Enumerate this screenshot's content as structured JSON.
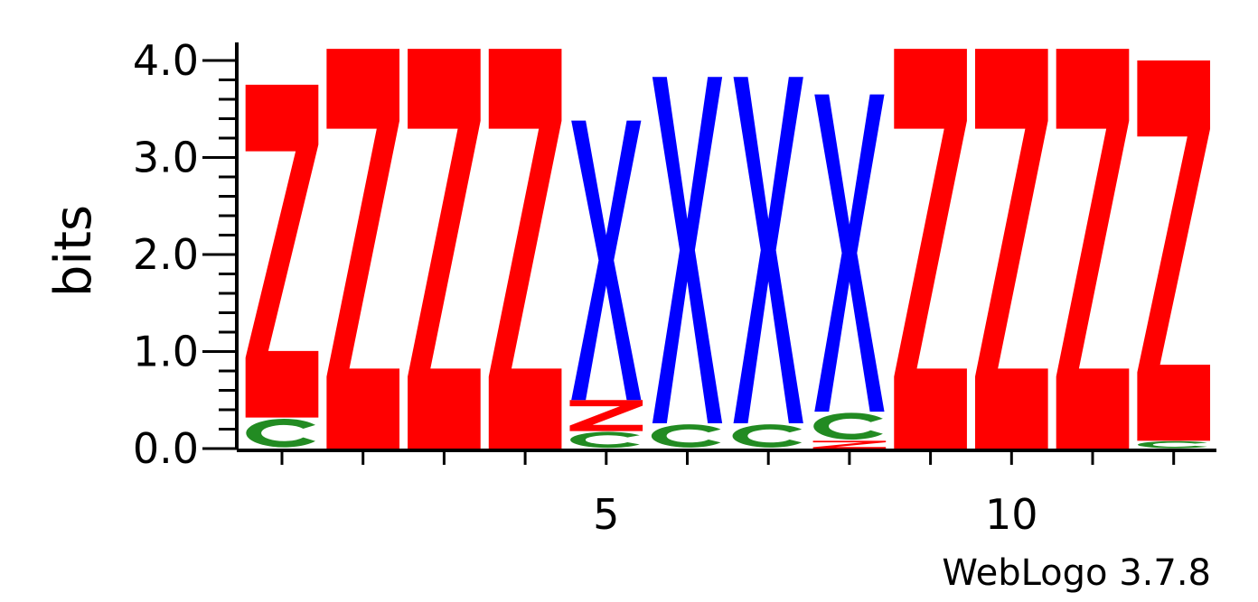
{
  "chart_data": {
    "type": "sequence-logo",
    "ylabel": "bits",
    "ylim": [
      0,
      4.0
    ],
    "y_ticks": [
      "0.0",
      "1.0",
      "2.0",
      "3.0",
      "4.0"
    ],
    "x_tick_labels": [
      {
        "position": 5,
        "label": "5"
      },
      {
        "position": 10,
        "label": "10"
      }
    ],
    "x_positions": [
      1,
      2,
      3,
      4,
      5,
      6,
      7,
      8,
      9,
      10,
      11,
      12
    ],
    "colors": {
      "Z": "#ff0000",
      "X": "#0000ff",
      "C": "#228b22"
    },
    "columns": [
      {
        "position": 1,
        "stack": [
          {
            "letter": "C",
            "height": 0.32
          },
          {
            "letter": "Z",
            "height": 3.43
          }
        ]
      },
      {
        "position": 2,
        "stack": [
          {
            "letter": "Z",
            "height": 4.12
          }
        ]
      },
      {
        "position": 3,
        "stack": [
          {
            "letter": "Z",
            "height": 4.12
          }
        ]
      },
      {
        "position": 4,
        "stack": [
          {
            "letter": "Z",
            "height": 4.12
          }
        ]
      },
      {
        "position": 5,
        "stack": [
          {
            "letter": "C",
            "height": 0.18
          },
          {
            "letter": "Z",
            "height": 0.32
          },
          {
            "letter": "X",
            "height": 2.88
          }
        ]
      },
      {
        "position": 6,
        "stack": [
          {
            "letter": "C",
            "height": 0.26
          },
          {
            "letter": "X",
            "height": 3.57
          }
        ]
      },
      {
        "position": 7,
        "stack": [
          {
            "letter": "C",
            "height": 0.26
          },
          {
            "letter": "X",
            "height": 3.57
          }
        ]
      },
      {
        "position": 8,
        "stack": [
          {
            "letter": "Z",
            "height": 0.08
          },
          {
            "letter": "C",
            "height": 0.3
          },
          {
            "letter": "X",
            "height": 3.27
          }
        ]
      },
      {
        "position": 9,
        "stack": [
          {
            "letter": "Z",
            "height": 4.12
          }
        ]
      },
      {
        "position": 10,
        "stack": [
          {
            "letter": "Z",
            "height": 4.12
          }
        ]
      },
      {
        "position": 11,
        "stack": [
          {
            "letter": "Z",
            "height": 4.12
          }
        ]
      },
      {
        "position": 12,
        "stack": [
          {
            "letter": "C",
            "height": 0.08
          },
          {
            "letter": "Z",
            "height": 3.92
          }
        ]
      }
    ]
  },
  "footer": {
    "credit": "WebLogo 3.7.8"
  }
}
